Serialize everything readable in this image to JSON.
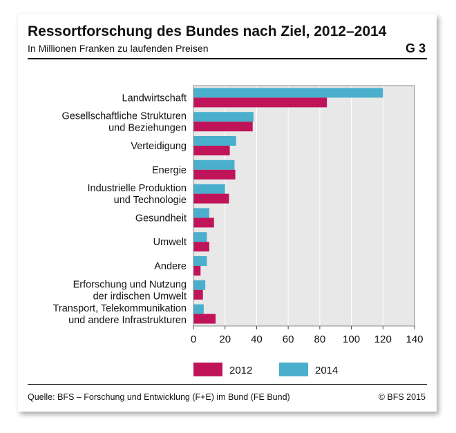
{
  "header": {
    "title": "Ressortforschung des Bundes nach Ziel, 2012–2014",
    "subtitle": "In Millionen Franken zu laufenden Preisen",
    "figure_code": "G 3"
  },
  "footer": {
    "source": "Quelle: BFS – Forschung und Entwicklung (F+E) im Bund (FE Bund)",
    "copyright": "© BFS 2015"
  },
  "colors": {
    "series_2012": "#c0145a",
    "series_2014": "#4aafcc",
    "plot_background": "#e8e8e8",
    "gridline": "#ffffff",
    "frame": "#888888"
  },
  "chart_data": {
    "type": "bar",
    "orientation": "horizontal",
    "title": "Ressortforschung des Bundes nach Ziel, 2012–2014",
    "subtitle": "In Millionen Franken zu laufenden Preisen",
    "categories": [
      [
        "Landwirtschaft"
      ],
      [
        "Gesellschaftliche Strukturen",
        "und Beziehungen"
      ],
      [
        "Verteidigung"
      ],
      [
        "Energie"
      ],
      [
        "Industrielle Produktion",
        "und Technologie"
      ],
      [
        "Gesundheit"
      ],
      [
        "Umwelt"
      ],
      [
        "Andere"
      ],
      [
        "Erforschung und Nutzung",
        "der irdischen Umwelt"
      ],
      [
        "Transport, Telekommunikation",
        "und andere Infrastrukturen"
      ]
    ],
    "series": [
      {
        "name": "2014",
        "color": "#4aafcc",
        "values": [
          120,
          38,
          27,
          26,
          20,
          10,
          8.5,
          8.5,
          7.5,
          6.5
        ]
      },
      {
        "name": "2012",
        "color": "#c0145a",
        "values": [
          84.5,
          37.5,
          23,
          26.5,
          22.5,
          13,
          10,
          4.5,
          6,
          14
        ]
      }
    ],
    "xlim": [
      0,
      140
    ],
    "xticks": [
      0,
      20,
      40,
      60,
      80,
      100,
      120,
      140
    ],
    "xlabel": "",
    "ylabel": "",
    "grid": "vertical",
    "legend": {
      "position": "bottom",
      "items": [
        {
          "label": "2012",
          "color": "#c0145a"
        },
        {
          "label": "2014",
          "color": "#4aafcc"
        }
      ]
    }
  }
}
